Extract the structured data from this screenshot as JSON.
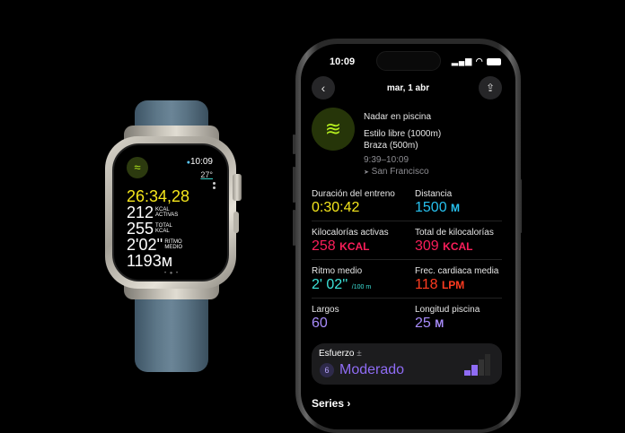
{
  "watch": {
    "time": "10:09",
    "temperature": "27°",
    "workout_icon": "swimmer-icon",
    "elapsed": "26:34,28",
    "metrics": [
      {
        "value": "212",
        "label1": "KCAL",
        "label2": "ACTIVAS"
      },
      {
        "value": "255",
        "label1": "TOTAL",
        "label2": "KCAL"
      },
      {
        "value": "2'02''",
        "label1": "RITMO",
        "label2": "MEDIO"
      },
      {
        "value": "1193м",
        "label1": "",
        "label2": ""
      }
    ],
    "page_dots": "• ● •"
  },
  "phone": {
    "status": {
      "time": "10:09"
    },
    "header": {
      "title": "mar, 1 abr",
      "back_icon": "chevron-left-icon",
      "share_icon": "share-icon"
    },
    "workout": {
      "name": "Nadar en piscina",
      "stroke1": "Estilo libre (1000m)",
      "stroke2": "Braza (500m)",
      "time_range": "9:39–10:09",
      "location": "San Francisco",
      "icon": "swimmer-icon"
    },
    "metrics": [
      {
        "label": "Duración del entreno",
        "value": "0:30:42",
        "unit": "",
        "color": "#f5e61c"
      },
      {
        "label": "Distancia",
        "value": "1500",
        "unit": "M",
        "color": "#27c1ee"
      },
      {
        "label": "Kilocalorías activas",
        "value": "258",
        "unit": "KCAL",
        "color": "#fa1e5a"
      },
      {
        "label": "Total de kilocalorías",
        "value": "309",
        "unit": "KCAL",
        "color": "#fa1e5a"
      },
      {
        "label": "Ritmo medio",
        "value": "2' 02''",
        "unit": "/100 m",
        "color": "#3de3da"
      },
      {
        "label": "Frec. cardiaca media",
        "value": "118",
        "unit": "LPM",
        "color": "#ff3b20"
      },
      {
        "label": "Largos",
        "value": "60",
        "unit": "",
        "color": "#a78bfa"
      },
      {
        "label": "Longitud piscina",
        "value": "25",
        "unit": "M",
        "color": "#a78bfa"
      }
    ],
    "effort": {
      "label": "Esfuerzo",
      "badge": "6",
      "value": "Moderado",
      "color": "#8f6cf5",
      "level_bars": 2,
      "total_bars": 4
    },
    "series_label": "Series"
  }
}
